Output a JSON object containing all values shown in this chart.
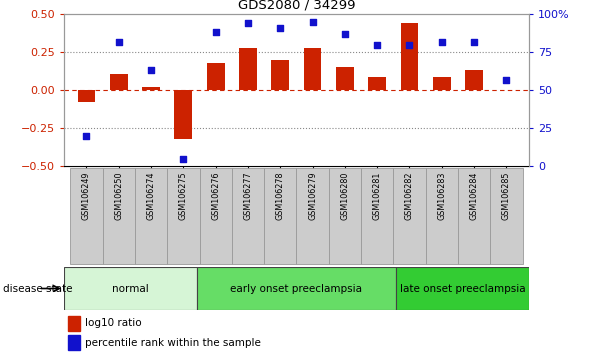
{
  "title": "GDS2080 / 34299",
  "samples": [
    "GSM106249",
    "GSM106250",
    "GSM106274",
    "GSM106275",
    "GSM106276",
    "GSM106277",
    "GSM106278",
    "GSM106279",
    "GSM106280",
    "GSM106281",
    "GSM106282",
    "GSM106283",
    "GSM106284",
    "GSM106285"
  ],
  "log10_ratio": [
    -0.08,
    0.11,
    0.02,
    -0.32,
    0.18,
    0.28,
    0.2,
    0.28,
    0.15,
    0.09,
    0.44,
    0.09,
    0.13,
    0.0
  ],
  "percentile_rank": [
    20,
    82,
    63,
    5,
    88,
    94,
    91,
    95,
    87,
    80,
    80,
    82,
    82,
    57
  ],
  "ylim_left": [
    -0.5,
    0.5
  ],
  "ylim_right": [
    0,
    100
  ],
  "yticks_left": [
    -0.5,
    -0.25,
    0,
    0.25,
    0.5
  ],
  "yticks_right": [
    0,
    25,
    50,
    75,
    100
  ],
  "ytick_labels_right": [
    "0",
    "25",
    "50",
    "75",
    "100%"
  ],
  "groups": [
    {
      "label": "normal",
      "start": 0,
      "end": 4,
      "color": "#d6f5d6"
    },
    {
      "label": "early onset preeclampsia",
      "start": 4,
      "end": 10,
      "color": "#66dd66"
    },
    {
      "label": "late onset preeclampsia",
      "start": 10,
      "end": 14,
      "color": "#33cc33"
    }
  ],
  "bar_color": "#cc2200",
  "dot_color": "#1111cc",
  "hline_color": "#cc2200",
  "dotted_color": "#888888",
  "disease_state_label": "disease state",
  "legend_items": [
    {
      "label": "log10 ratio",
      "color": "#cc2200"
    },
    {
      "label": "percentile rank within the sample",
      "color": "#1111cc"
    }
  ],
  "bg_color": "#ffffff",
  "tick_label_color_left": "#cc2200",
  "tick_label_color_right": "#1111cc",
  "xtick_bg_color": "#cccccc",
  "xtick_edge_color": "#999999",
  "spine_color": "#999999"
}
